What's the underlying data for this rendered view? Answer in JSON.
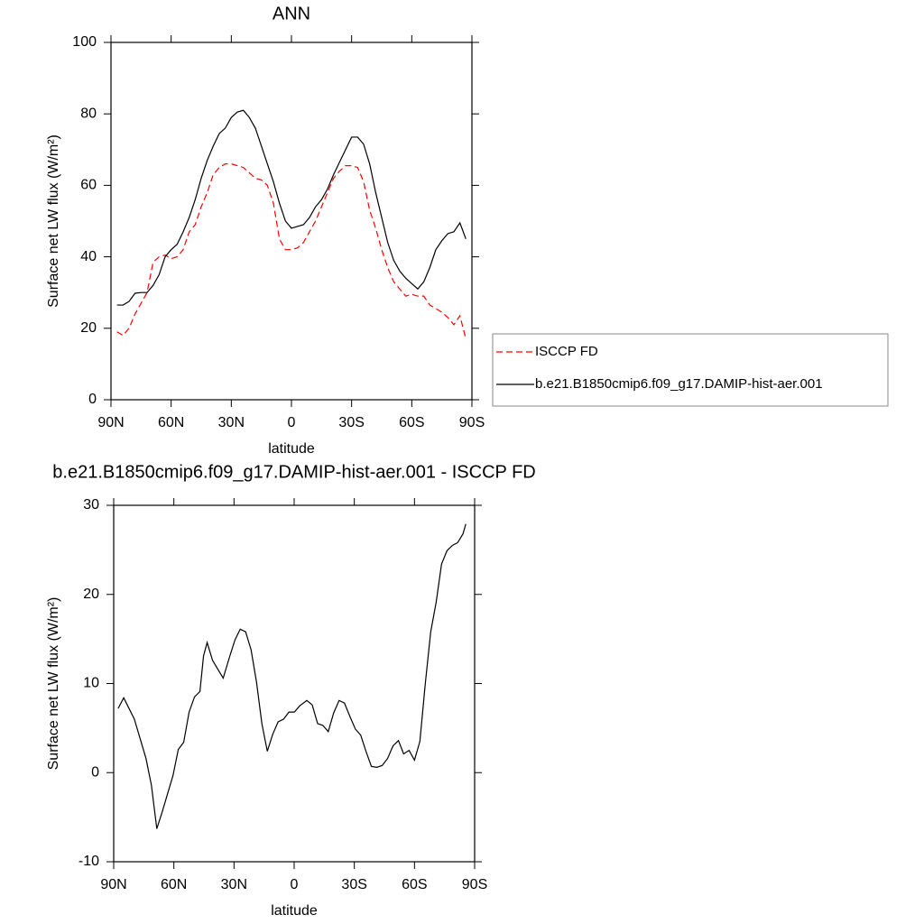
{
  "chart_data": [
    {
      "type": "line",
      "title": "ANN",
      "x_label": "latitude",
      "y_label": "Surface net LW flux (W/m²)",
      "xlim": [
        90,
        -90
      ],
      "xticks": [
        {
          "value": 90,
          "label": "90N"
        },
        {
          "value": 60,
          "label": "60N"
        },
        {
          "value": 30,
          "label": "30N"
        },
        0,
        {
          "value": -30,
          "label": "30S"
        },
        {
          "value": -60,
          "label": "60S"
        },
        {
          "value": -90,
          "label": "90S"
        }
      ],
      "ylim": [
        0,
        100
      ],
      "yticks": [
        0,
        20,
        40,
        60,
        80,
        100
      ],
      "legend": "right",
      "x": [
        87,
        84,
        81,
        78,
        75,
        72,
        69,
        66,
        63,
        60,
        57,
        54,
        51,
        48,
        45,
        42,
        39,
        36,
        33,
        30,
        27,
        24,
        21,
        18,
        15,
        12,
        9,
        6,
        3,
        0,
        -3,
        -6,
        -9,
        -12,
        -15,
        -18,
        -21,
        -24,
        -27,
        -30,
        -33,
        -36,
        -39,
        -42,
        -45,
        -48,
        -51,
        -54,
        -57,
        -60,
        -63,
        -66,
        -69,
        -72,
        -75,
        -78,
        -81,
        -84,
        -87
      ],
      "series": [
        {
          "name": "ISCCP FD",
          "color": "#ff0000",
          "dashed": true,
          "values": [
            19,
            18,
            20,
            24,
            27,
            30,
            38.5,
            40,
            40.5,
            39.5,
            40,
            42,
            47,
            49,
            54,
            58,
            63,
            65,
            66,
            66,
            65.5,
            65,
            63.5,
            62,
            61.5,
            60,
            55,
            45,
            42,
            42,
            42.5,
            44,
            47,
            50,
            54,
            58,
            62,
            64,
            65.5,
            65.5,
            65,
            61,
            53,
            48,
            42,
            37,
            33,
            31,
            29,
            29.5,
            29,
            29,
            26.5,
            25.5,
            24.5,
            23,
            21,
            23.5,
            17
          ]
        },
        {
          "name": "b.e21.B1850cmip6.f09_g17.DAMIP-hist-aer.001",
          "color": "#000000",
          "dashed": false,
          "values": [
            26.5,
            26.5,
            27.5,
            29.8,
            30,
            30,
            32,
            35,
            40,
            42,
            43.5,
            47,
            51,
            56,
            62,
            67,
            71,
            74.5,
            76,
            79,
            80.5,
            81,
            79,
            76,
            71,
            66,
            61,
            55,
            50,
            48,
            48.5,
            49,
            51,
            54,
            56,
            59,
            63,
            66.5,
            70,
            73.5,
            73.5,
            71.5,
            66,
            58,
            51,
            44,
            39,
            36,
            34,
            32.5,
            31,
            33,
            37,
            42,
            44.5,
            46.5,
            47,
            49.5,
            45
          ]
        }
      ]
    },
    {
      "type": "line",
      "title": "b.e21.B1850cmip6.f09_g17.DAMIP-hist-aer.001 - ISCCP FD",
      "x_label": "latitude",
      "y_label": "Surface net LW flux (W/m²)",
      "xlim": [
        90,
        -90
      ],
      "xticks": [
        {
          "value": 90,
          "label": "90N"
        },
        {
          "value": 60,
          "label": "60N"
        },
        {
          "value": 30,
          "label": "30N"
        },
        0,
        {
          "value": -30,
          "label": "30S"
        },
        {
          "value": -60,
          "label": "60S"
        },
        {
          "value": -90,
          "label": "90S"
        }
      ],
      "ylim": [
        -10,
        30
      ],
      "yticks": [
        -10,
        0,
        10,
        20,
        30
      ],
      "x": [
        87.8,
        85,
        79.7,
        73.9,
        71.2,
        68.5,
        65.8,
        60.4,
        57.8,
        55.1,
        52.4,
        49.7,
        47,
        45.2,
        43.4,
        40.7,
        35.4,
        32.2,
        29.5,
        26.9,
        24.2,
        21.5,
        18.8,
        16.1,
        13.4,
        10.7,
        8,
        5.3,
        2.6,
        -0.1,
        -2.8,
        -6.3,
        -9,
        -11.7,
        -14.3,
        -17,
        -19.7,
        -22.4,
        -25.1,
        -27.8,
        -30.5,
        -33.2,
        -35.8,
        -38.5,
        -41.2,
        -43.9,
        -46.6,
        -49.3,
        -52,
        -54.6,
        -57.3,
        -60,
        -62.7,
        -65.4,
        -68.1,
        -70.8,
        -73.5,
        -76.2,
        -78.9,
        -81.5,
        -84.2,
        -85.6
      ],
      "series": [
        {
          "color": "#000000",
          "dashed": false,
          "values": [
            7.2,
            8.4,
            6,
            1.6,
            -1.4,
            -6.3,
            -4.4,
            -0.3,
            2.6,
            3.4,
            6.8,
            8.5,
            9.1,
            13.1,
            14.6,
            12.6,
            10.6,
            13,
            14.9,
            16.1,
            15.8,
            13.8,
            10.2,
            5.5,
            2.4,
            4.3,
            5.7,
            6,
            6.8,
            6.8,
            7.5,
            8.1,
            7.6,
            5.5,
            5.3,
            4.6,
            6.7,
            8.1,
            7.8,
            6.3,
            4.9,
            4.2,
            2.4,
            0.7,
            0.6,
            0.8,
            1.6,
            3,
            3.6,
            2.1,
            2.5,
            1.4,
            3.5,
            10,
            15.8,
            19.1,
            23.4,
            24.9,
            25.5,
            25.8,
            26.8,
            27.9
          ]
        }
      ]
    }
  ]
}
